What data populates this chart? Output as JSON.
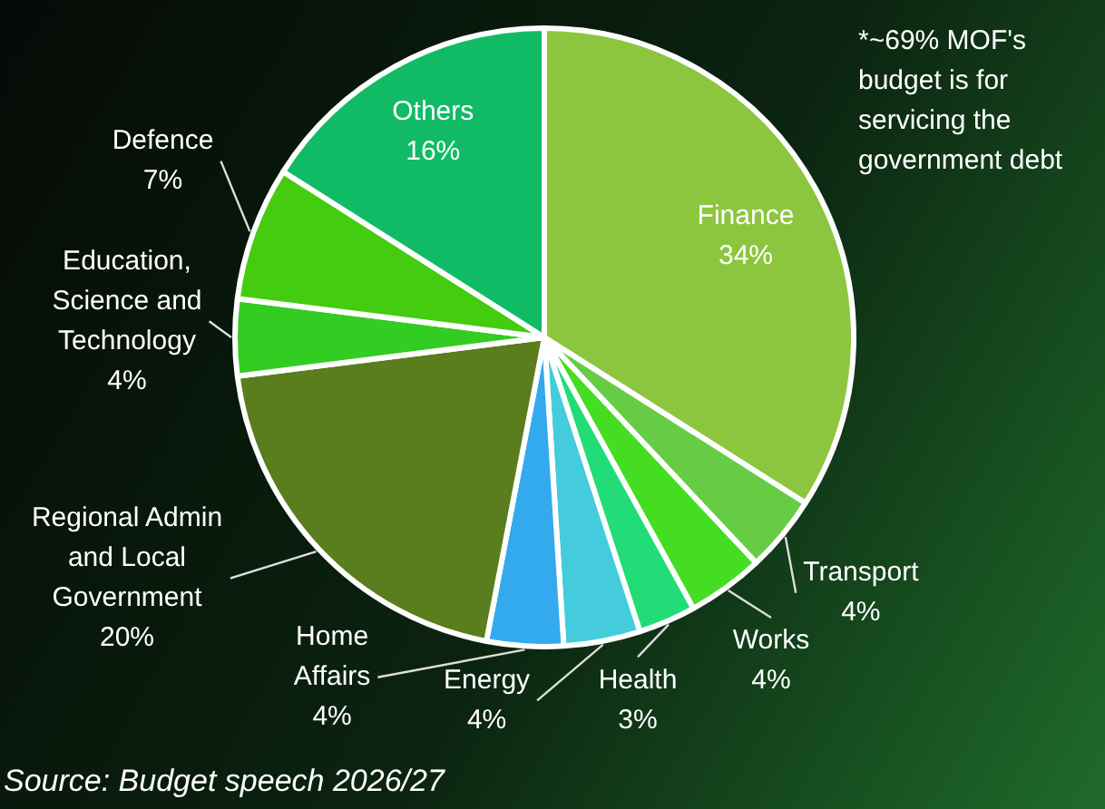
{
  "chart_data": {
    "type": "pie",
    "categories": [
      "Finance",
      "Transport",
      "Works",
      "Health",
      "Energy",
      "Home Affairs",
      "Regional Admin and Local Government",
      "Education, Science and Technology",
      "Defence",
      "Others"
    ],
    "values": [
      34,
      4,
      4,
      3,
      4,
      4,
      20,
      4,
      7,
      16
    ],
    "value_labels": [
      "34%",
      "4%",
      "4%",
      "3%",
      "4%",
      "4%",
      "20%",
      "4%",
      "7%",
      "16%"
    ],
    "colors": [
      "#8cc63f",
      "#66cc44",
      "#44dd22",
      "#22dd77",
      "#44ccdd",
      "#33aaee",
      "#5a7d1e",
      "#33cc22",
      "#44cc11",
      "#11bb66"
    ],
    "legend": false,
    "annotations": [
      "*~69% MOF's budget is for servicing the government debt",
      "Source: Budget speech 2026/27"
    ]
  }
}
